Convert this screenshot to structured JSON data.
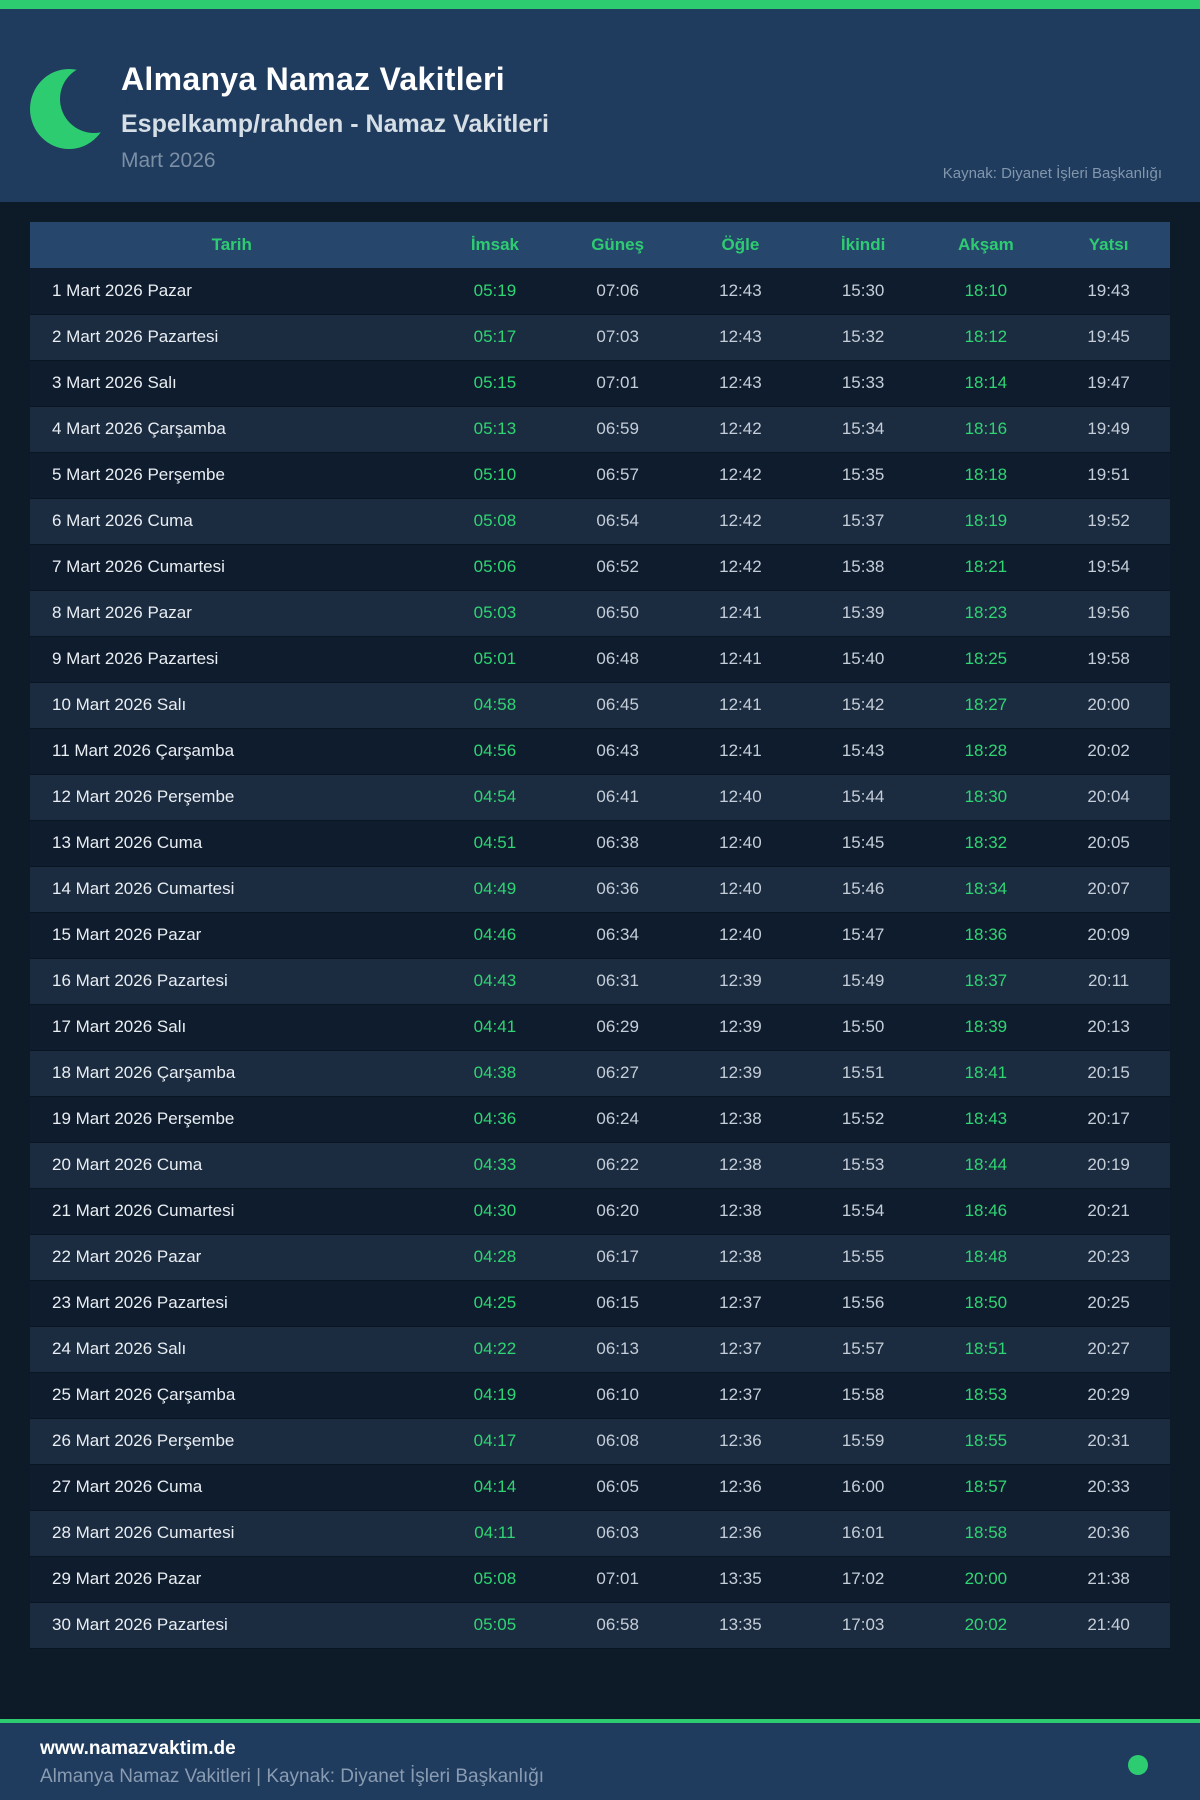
{
  "header": {
    "title": "Almanya Namaz Vakitleri",
    "subtitle": "Espelkamp/rahden - Namaz Vakitleri",
    "month": "Mart 2026",
    "source": "Kaynak: Diyanet İşleri Başkanlığı"
  },
  "colors": {
    "accent_green": "#2ecc71",
    "time_green": "#2fd573",
    "header_navy": "#1f3b5e",
    "page_bg": "#0d1a28",
    "row_light": "#1b2b40",
    "table_header_bg": "#26466b"
  },
  "table": {
    "columns": [
      "Tarih",
      "İmsak",
      "Güneş",
      "Öğle",
      "İkindi",
      "Akşam",
      "Yatsı"
    ],
    "rows": [
      {
        "date": "1 Mart 2026 Pazar",
        "imsak": "05:19",
        "gunes": "07:06",
        "ogle": "12:43",
        "ikindi": "15:30",
        "aksam": "18:10",
        "yatsi": "19:43"
      },
      {
        "date": "2 Mart 2026 Pazartesi",
        "imsak": "05:17",
        "gunes": "07:03",
        "ogle": "12:43",
        "ikindi": "15:32",
        "aksam": "18:12",
        "yatsi": "19:45"
      },
      {
        "date": "3 Mart 2026 Salı",
        "imsak": "05:15",
        "gunes": "07:01",
        "ogle": "12:43",
        "ikindi": "15:33",
        "aksam": "18:14",
        "yatsi": "19:47"
      },
      {
        "date": "4 Mart 2026 Çarşamba",
        "imsak": "05:13",
        "gunes": "06:59",
        "ogle": "12:42",
        "ikindi": "15:34",
        "aksam": "18:16",
        "yatsi": "19:49"
      },
      {
        "date": "5 Mart 2026 Perşembe",
        "imsak": "05:10",
        "gunes": "06:57",
        "ogle": "12:42",
        "ikindi": "15:35",
        "aksam": "18:18",
        "yatsi": "19:51"
      },
      {
        "date": "6 Mart 2026 Cuma",
        "imsak": "05:08",
        "gunes": "06:54",
        "ogle": "12:42",
        "ikindi": "15:37",
        "aksam": "18:19",
        "yatsi": "19:52"
      },
      {
        "date": "7 Mart 2026 Cumartesi",
        "imsak": "05:06",
        "gunes": "06:52",
        "ogle": "12:42",
        "ikindi": "15:38",
        "aksam": "18:21",
        "yatsi": "19:54"
      },
      {
        "date": "8 Mart 2026 Pazar",
        "imsak": "05:03",
        "gunes": "06:50",
        "ogle": "12:41",
        "ikindi": "15:39",
        "aksam": "18:23",
        "yatsi": "19:56"
      },
      {
        "date": "9 Mart 2026 Pazartesi",
        "imsak": "05:01",
        "gunes": "06:48",
        "ogle": "12:41",
        "ikindi": "15:40",
        "aksam": "18:25",
        "yatsi": "19:58"
      },
      {
        "date": "10 Mart 2026 Salı",
        "imsak": "04:58",
        "gunes": "06:45",
        "ogle": "12:41",
        "ikindi": "15:42",
        "aksam": "18:27",
        "yatsi": "20:00"
      },
      {
        "date": "11 Mart 2026 Çarşamba",
        "imsak": "04:56",
        "gunes": "06:43",
        "ogle": "12:41",
        "ikindi": "15:43",
        "aksam": "18:28",
        "yatsi": "20:02"
      },
      {
        "date": "12 Mart 2026 Perşembe",
        "imsak": "04:54",
        "gunes": "06:41",
        "ogle": "12:40",
        "ikindi": "15:44",
        "aksam": "18:30",
        "yatsi": "20:04"
      },
      {
        "date": "13 Mart 2026 Cuma",
        "imsak": "04:51",
        "gunes": "06:38",
        "ogle": "12:40",
        "ikindi": "15:45",
        "aksam": "18:32",
        "yatsi": "20:05"
      },
      {
        "date": "14 Mart 2026 Cumartesi",
        "imsak": "04:49",
        "gunes": "06:36",
        "ogle": "12:40",
        "ikindi": "15:46",
        "aksam": "18:34",
        "yatsi": "20:07"
      },
      {
        "date": "15 Mart 2026 Pazar",
        "imsak": "04:46",
        "gunes": "06:34",
        "ogle": "12:40",
        "ikindi": "15:47",
        "aksam": "18:36",
        "yatsi": "20:09"
      },
      {
        "date": "16 Mart 2026 Pazartesi",
        "imsak": "04:43",
        "gunes": "06:31",
        "ogle": "12:39",
        "ikindi": "15:49",
        "aksam": "18:37",
        "yatsi": "20:11"
      },
      {
        "date": "17 Mart 2026 Salı",
        "imsak": "04:41",
        "gunes": "06:29",
        "ogle": "12:39",
        "ikindi": "15:50",
        "aksam": "18:39",
        "yatsi": "20:13"
      },
      {
        "date": "18 Mart 2026 Çarşamba",
        "imsak": "04:38",
        "gunes": "06:27",
        "ogle": "12:39",
        "ikindi": "15:51",
        "aksam": "18:41",
        "yatsi": "20:15"
      },
      {
        "date": "19 Mart 2026 Perşembe",
        "imsak": "04:36",
        "gunes": "06:24",
        "ogle": "12:38",
        "ikindi": "15:52",
        "aksam": "18:43",
        "yatsi": "20:17"
      },
      {
        "date": "20 Mart 2026 Cuma",
        "imsak": "04:33",
        "gunes": "06:22",
        "ogle": "12:38",
        "ikindi": "15:53",
        "aksam": "18:44",
        "yatsi": "20:19"
      },
      {
        "date": "21 Mart 2026 Cumartesi",
        "imsak": "04:30",
        "gunes": "06:20",
        "ogle": "12:38",
        "ikindi": "15:54",
        "aksam": "18:46",
        "yatsi": "20:21"
      },
      {
        "date": "22 Mart 2026 Pazar",
        "imsak": "04:28",
        "gunes": "06:17",
        "ogle": "12:38",
        "ikindi": "15:55",
        "aksam": "18:48",
        "yatsi": "20:23"
      },
      {
        "date": "23 Mart 2026 Pazartesi",
        "imsak": "04:25",
        "gunes": "06:15",
        "ogle": "12:37",
        "ikindi": "15:56",
        "aksam": "18:50",
        "yatsi": "20:25"
      },
      {
        "date": "24 Mart 2026 Salı",
        "imsak": "04:22",
        "gunes": "06:13",
        "ogle": "12:37",
        "ikindi": "15:57",
        "aksam": "18:51",
        "yatsi": "20:27"
      },
      {
        "date": "25 Mart 2026 Çarşamba",
        "imsak": "04:19",
        "gunes": "06:10",
        "ogle": "12:37",
        "ikindi": "15:58",
        "aksam": "18:53",
        "yatsi": "20:29"
      },
      {
        "date": "26 Mart 2026 Perşembe",
        "imsak": "04:17",
        "gunes": "06:08",
        "ogle": "12:36",
        "ikindi": "15:59",
        "aksam": "18:55",
        "yatsi": "20:31"
      },
      {
        "date": "27 Mart 2026 Cuma",
        "imsak": "04:14",
        "gunes": "06:05",
        "ogle": "12:36",
        "ikindi": "16:00",
        "aksam": "18:57",
        "yatsi": "20:33"
      },
      {
        "date": "28 Mart 2026 Cumartesi",
        "imsak": "04:11",
        "gunes": "06:03",
        "ogle": "12:36",
        "ikindi": "16:01",
        "aksam": "18:58",
        "yatsi": "20:36"
      },
      {
        "date": "29 Mart 2026 Pazar",
        "imsak": "05:08",
        "gunes": "07:01",
        "ogle": "13:35",
        "ikindi": "17:02",
        "aksam": "20:00",
        "yatsi": "21:38"
      },
      {
        "date": "30 Mart 2026 Pazartesi",
        "imsak": "05:05",
        "gunes": "06:58",
        "ogle": "13:35",
        "ikindi": "17:03",
        "aksam": "20:02",
        "yatsi": "21:40"
      }
    ]
  },
  "footer": {
    "site": "www.namazvaktim.de",
    "subtitle": "Almanya Namaz Vakitleri | Kaynak: Diyanet İşleri Başkanlığı"
  }
}
